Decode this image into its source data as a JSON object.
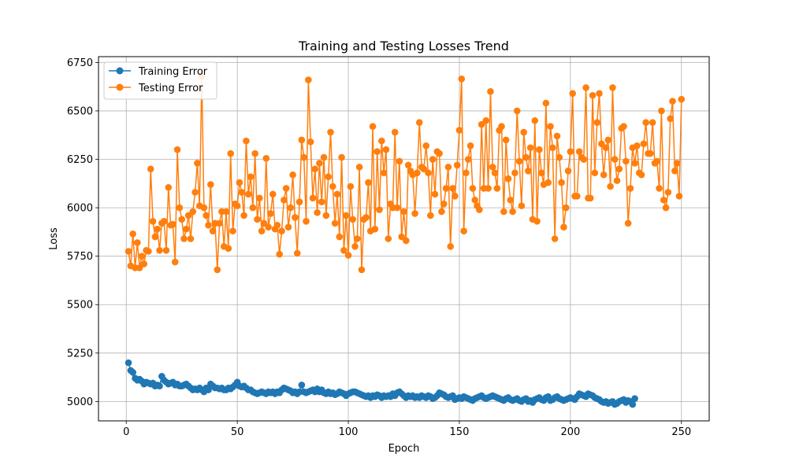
{
  "chart_data": {
    "type": "line",
    "title": "Training and Testing Losses Trend",
    "xlabel": "Epoch",
    "ylabel": "Loss",
    "xlim": [
      -12.5,
      262.5
    ],
    "ylim": [
      4900,
      6780
    ],
    "xticks": [
      0,
      50,
      100,
      150,
      200,
      250
    ],
    "yticks": [
      5000,
      5250,
      5500,
      5750,
      6000,
      6250,
      6500,
      6750
    ],
    "grid": true,
    "legend_position": "top-left",
    "series": [
      {
        "name": "Training Error",
        "color": "#1f77b4",
        "x_start": 1,
        "values": [
          5200,
          5160,
          5150,
          5120,
          5110,
          5115,
          5105,
          5090,
          5100,
          5095,
          5090,
          5095,
          5080,
          5085,
          5080,
          5130,
          5110,
          5100,
          5090,
          5095,
          5100,
          5085,
          5090,
          5080,
          5080,
          5085,
          5090,
          5080,
          5070,
          5060,
          5065,
          5060,
          5070,
          5060,
          5050,
          5070,
          5060,
          5090,
          5080,
          5070,
          5070,
          5065,
          5070,
          5060,
          5060,
          5070,
          5065,
          5075,
          5085,
          5100,
          5080,
          5075,
          5080,
          5070,
          5060,
          5060,
          5050,
          5045,
          5040,
          5045,
          5050,
          5045,
          5040,
          5050,
          5045,
          5050,
          5040,
          5050,
          5045,
          5060,
          5070,
          5065,
          5060,
          5055,
          5045,
          5050,
          5040,
          5050,
          5085,
          5050,
          5045,
          5050,
          5055,
          5060,
          5050,
          5065,
          5050,
          5060,
          5045,
          5040,
          5050,
          5040,
          5045,
          5035,
          5040,
          5050,
          5045,
          5040,
          5030,
          5040,
          5045,
          5050,
          5050,
          5045,
          5040,
          5035,
          5030,
          5025,
          5030,
          5020,
          5030,
          5025,
          5035,
          5030,
          5020,
          5030,
          5025,
          5030,
          5025,
          5040,
          5030,
          5045,
          5050,
          5040,
          5030,
          5020,
          5030,
          5025,
          5030,
          5020,
          5025,
          5020,
          5030,
          5025,
          5020,
          5030,
          5025,
          5015,
          5020,
          5030,
          5045,
          5040,
          5035,
          5025,
          5020,
          5025,
          5030,
          5010,
          5015,
          5020,
          5015,
          5025,
          5020,
          5015,
          5010,
          5005,
          5015,
          5020,
          5025,
          5030,
          5020,
          5015,
          5020,
          5025,
          5030,
          5025,
          5020,
          5015,
          5010,
          5005,
          5015,
          5020,
          5010,
          5005,
          5010,
          5015,
          5005,
          5000,
          5010,
          5015,
          5000,
          5005,
          4995,
          5010,
          5015,
          5020,
          5010,
          5005,
          5020,
          5025,
          5005,
          5010,
          5020,
          5025,
          5015,
          5010,
          5005,
          5010,
          5015,
          5020,
          5015,
          5010,
          5025,
          5040,
          5035,
          5030,
          5025,
          5040,
          5035,
          5030,
          5020,
          5015,
          5010,
          5000,
          4995,
          5000,
          4990,
          4995,
          5000,
          4985,
          4990,
          5000,
          5005,
          5010,
          4995,
          5005,
          5000,
          4985,
          5015
        ]
      },
      {
        "name": "Testing Error",
        "color": "#ff7f0e",
        "x_start": 1,
        "values": [
          5775,
          5700,
          5865,
          5690,
          5820,
          5690,
          5750,
          5710,
          5780,
          5775,
          6200,
          5930,
          5850,
          5890,
          5780,
          5920,
          5930,
          5780,
          6105,
          5910,
          5915,
          5720,
          6300,
          6000,
          5940,
          5840,
          5890,
          5960,
          5840,
          5980,
          6080,
          6230,
          6010,
          6680,
          6000,
          5960,
          5910,
          6120,
          5880,
          5920,
          5680,
          5920,
          5980,
          5800,
          5980,
          5790,
          6280,
          5880,
          6020,
          6010,
          6130,
          6080,
          5960,
          6345,
          6070,
          6160,
          6000,
          6280,
          5940,
          6050,
          5880,
          5920,
          6255,
          5900,
          5970,
          6070,
          5890,
          5910,
          5760,
          5880,
          6040,
          6100,
          5900,
          6000,
          6170,
          5950,
          5765,
          6030,
          6350,
          6260,
          5930,
          6660,
          6340,
          6050,
          6200,
          5975,
          6230,
          6030,
          6260,
          5960,
          6160,
          6390,
          6110,
          5920,
          6070,
          5850,
          6260,
          5780,
          5960,
          5755,
          6110,
          5940,
          5800,
          5840,
          6210,
          5680,
          5940,
          5950,
          6130,
          5880,
          6420,
          5890,
          6290,
          5990,
          6345,
          6180,
          6300,
          5840,
          6020,
          6000,
          6390,
          6000,
          6240,
          5850,
          5980,
          5830,
          6220,
          6190,
          6170,
          5970,
          6180,
          6440,
          6210,
          6200,
          6320,
          6180,
          5960,
          6250,
          6070,
          6290,
          6280,
          5980,
          6020,
          6100,
          6210,
          5800,
          6100,
          6060,
          6220,
          6400,
          6665,
          5880,
          6180,
          6250,
          6320,
          6100,
          6040,
          6010,
          5990,
          6430,
          6100,
          6450,
          6100,
          6600,
          6210,
          6180,
          6100,
          6400,
          6420,
          5980,
          6350,
          6150,
          6040,
          5980,
          6180,
          6500,
          6240,
          6010,
          6390,
          6260,
          6190,
          6310,
          5940,
          6450,
          5930,
          6300,
          6180,
          6120,
          6540,
          6130,
          6420,
          6310,
          5840,
          6370,
          6260,
          6130,
          5900,
          6000,
          6190,
          6290,
          6590,
          6060,
          6060,
          6290,
          6260,
          6250,
          6620,
          6050,
          6050,
          6580,
          6180,
          6440,
          6590,
          6330,
          6170,
          6310,
          6350,
          6110,
          6620,
          6250,
          6140,
          6200,
          6410,
          6420,
          6240,
          5920,
          6100,
          6310,
          6230,
          6320,
          6180,
          6170,
          6330,
          6440,
          6280,
          6280,
          6440,
          6230,
          6240,
          6100,
          6500,
          6040,
          6000,
          6080,
          6460,
          6550,
          6190,
          6230,
          6060,
          6560
        ]
      }
    ]
  }
}
